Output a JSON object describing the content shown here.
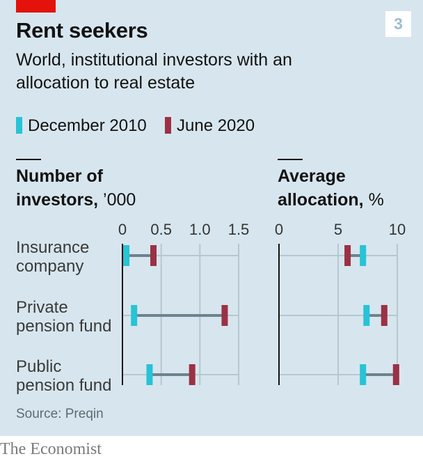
{
  "chart_number": "3",
  "source": "Source: Preqin",
  "publisher": "The Economist",
  "colors": {
    "background": "#d7e6ee",
    "brand_red": "#e3120b",
    "december_2010": "#27c3d6",
    "june_2020": "#9b3145",
    "connector": "#6c838f",
    "gridline": "#b6c7d0"
  },
  "chart_data": {
    "type": "dumbbell",
    "title": "Rent seekers",
    "subtitle": "World, institutional investors with an allocation to real estate",
    "categories": [
      [
        "Insurance",
        "company"
      ],
      [
        "Private",
        "pension fund"
      ],
      [
        "Public",
        "pension fund"
      ]
    ],
    "series": [
      {
        "name": "December 2010",
        "color": "#27c3d6"
      },
      {
        "name": "June 2020",
        "color": "#9b3145"
      }
    ],
    "panels": [
      {
        "heading_bold_line1": "Number of",
        "heading_bold_line2": "investors,",
        "unit": " ’000",
        "xlim": [
          0,
          1.5
        ],
        "ticks": [
          "0",
          "0.5",
          "1.0",
          "1.5"
        ],
        "tick_values": [
          0,
          0.5,
          1.0,
          1.5
        ],
        "values": {
          "December 2010": [
            0.05,
            0.15,
            0.35
          ],
          "June 2020": [
            0.4,
            1.32,
            0.9
          ]
        }
      },
      {
        "heading_bold_line1": "Average",
        "heading_bold_line2": "allocation,",
        "unit": " %",
        "xlim": [
          0,
          10
        ],
        "ticks": [
          "0",
          "5",
          "10"
        ],
        "tick_values": [
          0,
          5,
          10
        ],
        "values": {
          "December 2010": [
            7.1,
            7.4,
            7.1
          ],
          "June 2020": [
            5.8,
            8.9,
            9.9
          ]
        }
      }
    ],
    "grid": true,
    "legend_position": "top-left"
  }
}
